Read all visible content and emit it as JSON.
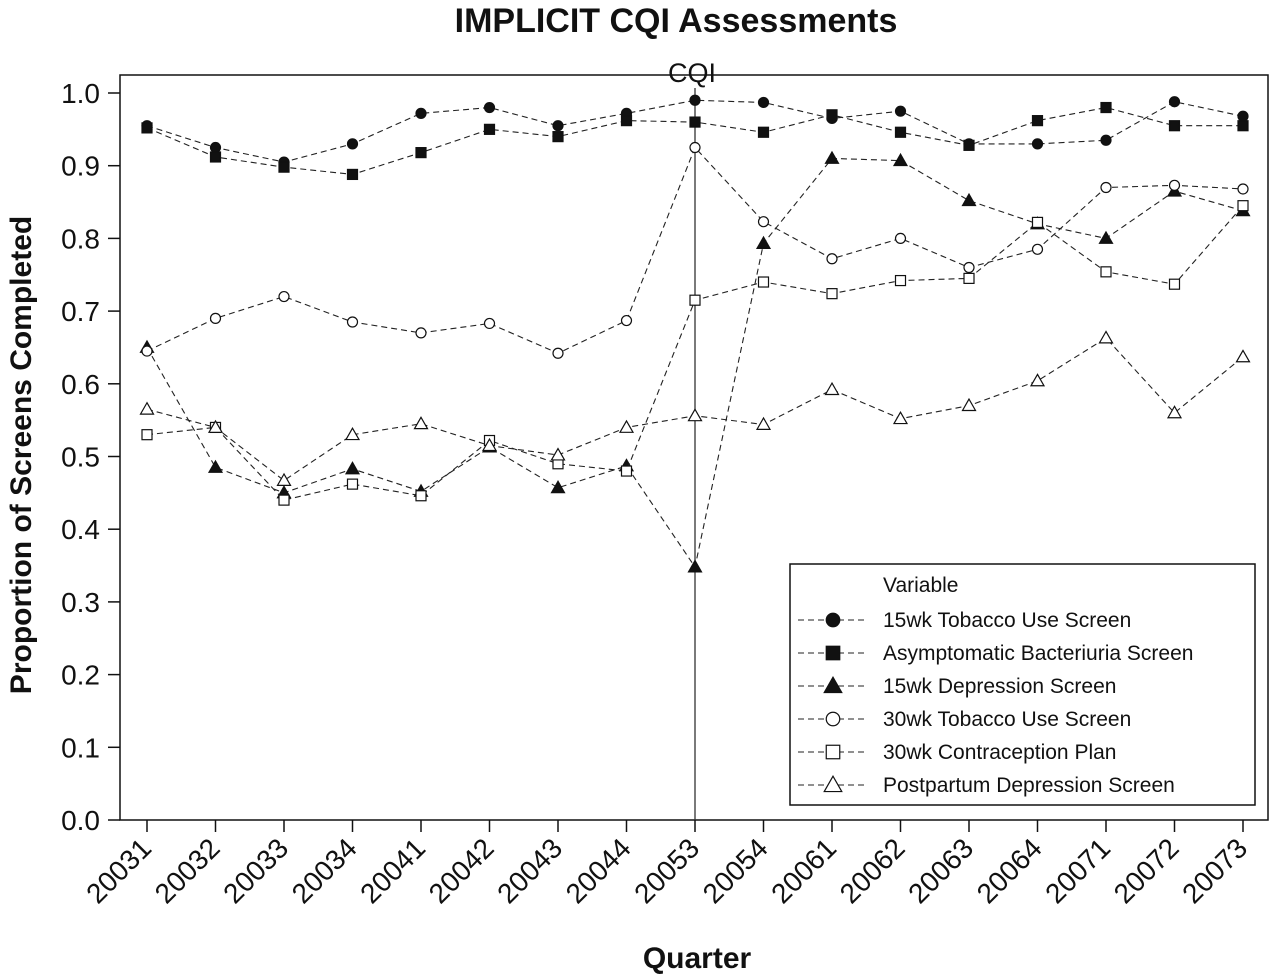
{
  "chart_data": {
    "type": "line",
    "title": "IMPLICIT CQI Assessments",
    "xlabel": "Quarter",
    "ylabel": "Proportion of Screens Completed",
    "ylim": [
      0.0,
      1.0
    ],
    "yticks": [
      "0.0",
      "0.1",
      "0.2",
      "0.3",
      "0.4",
      "0.5",
      "0.6",
      "0.7",
      "0.8",
      "0.9",
      "1.0"
    ],
    "categories": [
      "20031",
      "20032",
      "20033",
      "20034",
      "20041",
      "20042",
      "20043",
      "20044",
      "20053",
      "20054",
      "20061",
      "20062",
      "20063",
      "20064",
      "20071",
      "20072",
      "20073"
    ],
    "reference_line": {
      "category": "20053",
      "label": "CQI"
    },
    "legend": {
      "title": "Variable",
      "placement": "bottom-right"
    },
    "series": [
      {
        "name": "15wk Tobacco Use Screen",
        "marker": "circle-filled",
        "values": [
          0.955,
          0.925,
          0.905,
          0.93,
          0.972,
          0.98,
          0.955,
          0.972,
          0.99,
          0.987,
          0.965,
          0.975,
          0.93,
          0.93,
          0.935,
          0.988,
          0.968
        ]
      },
      {
        "name": "Asymptomatic Bacteriuria Screen",
        "marker": "square-filled",
        "values": [
          0.952,
          0.912,
          0.898,
          0.888,
          0.918,
          0.95,
          0.94,
          0.962,
          0.96,
          0.946,
          0.97,
          0.946,
          0.928,
          0.962,
          0.98,
          0.955,
          0.955
        ]
      },
      {
        "name": "15wk Depression Screen",
        "marker": "triangle-filled",
        "values": [
          0.65,
          0.485,
          0.45,
          0.483,
          0.452,
          0.513,
          0.457,
          0.487,
          0.348,
          0.793,
          0.91,
          0.907,
          0.852,
          0.82,
          0.8,
          0.865,
          0.838
        ]
      },
      {
        "name": "30wk Tobacco Use Screen",
        "marker": "circle-open",
        "values": [
          0.645,
          0.69,
          0.72,
          0.685,
          0.67,
          0.683,
          0.642,
          0.687,
          0.925,
          0.823,
          0.772,
          0.8,
          0.76,
          0.785,
          0.87,
          0.873,
          0.868
        ]
      },
      {
        "name": "30wk Contraception Plan",
        "marker": "square-open",
        "values": [
          0.53,
          0.54,
          0.44,
          0.462,
          0.446,
          0.522,
          0.49,
          0.48,
          0.715,
          0.74,
          0.724,
          0.742,
          0.745,
          0.822,
          0.754,
          0.737,
          0.845
        ]
      },
      {
        "name": "Postpartum Depression Screen",
        "marker": "triangle-open",
        "values": [
          0.565,
          0.54,
          0.467,
          0.53,
          0.545,
          0.515,
          0.502,
          0.54,
          0.556,
          0.544,
          0.592,
          0.552,
          0.57,
          0.604,
          0.663,
          0.56,
          0.637
        ]
      }
    ]
  }
}
